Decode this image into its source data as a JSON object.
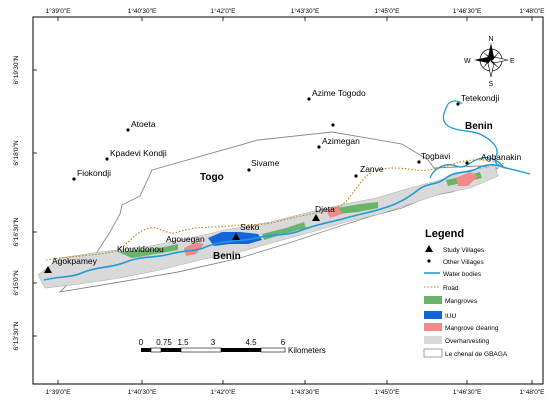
{
  "axes": {
    "top_ticks": [
      "1°39'0\"E",
      "1°40'30\"E",
      "1°42'0\"E",
      "1°43'30\"E",
      "1°45'0\"E",
      "1°46'30\"E",
      "1°48'0\"E"
    ],
    "bottom_ticks": [
      "1°39'0\"E",
      "1°40'30\"E",
      "1°42'0\"E",
      "1°43'30\"E",
      "1°45'0\"E",
      "1°46'30\"E",
      "1°48'0\"E"
    ],
    "left_ticks": [
      "6°19'30\"N",
      "6°18'0\"N",
      "6°16'30\"N",
      "6°15'0\"N",
      "6°13'30\"N"
    ]
  },
  "countries": {
    "togo": "Togo",
    "benin_south": "Benin",
    "benin_east": "Benin"
  },
  "places": {
    "azime_togodo": "Azime Togodo",
    "tetekondji": "Tetekondji",
    "atoeta": "Atoeta",
    "azimegan": "Azimegan",
    "kpadevi_kondji": "Kpadevi Kondji",
    "sivame": "Sivame",
    "togbavi": "Togbavi",
    "agbanakin": "Agbanakin",
    "fiokondji": "Fiokondji",
    "zanve": "Zanve",
    "djeta": "Djeta",
    "seko": "Seko",
    "agouegan": "Agouegan",
    "klouvidonou": "Klouvidonou",
    "agokpamey": "Agokpamey"
  },
  "legend": {
    "title": "Legend",
    "items": [
      {
        "label": "Study Villages",
        "symbol": "triangle",
        "color": "#000000"
      },
      {
        "label": "Other Villages",
        "symbol": "dot",
        "color": "#000000"
      },
      {
        "label": "Water bodies",
        "symbol": "line",
        "color": "#1f9bd7"
      },
      {
        "label": "Road",
        "symbol": "dotted-line",
        "color": "#b8860b"
      },
      {
        "label": "Mangroves",
        "symbol": "patch",
        "color": "#6ab36a"
      },
      {
        "label": "IUU",
        "symbol": "patch",
        "color": "#1565d8"
      },
      {
        "label": "Mangrove clearing",
        "symbol": "patch",
        "color": "#f08a8a"
      },
      {
        "label": "Overharvesting",
        "symbol": "patch",
        "color": "#d9d9d9"
      },
      {
        "label": "Le chenal de GBAGA",
        "symbol": "patch",
        "color": "#ffffff"
      }
    ]
  },
  "scale": {
    "ticks": [
      "0",
      "0.75",
      "1.5",
      "3",
      "4.5",
      "6"
    ],
    "unit": "Kilometers"
  },
  "compass": {
    "n": "N",
    "s": "S",
    "e": "E",
    "w": "W"
  },
  "colors": {
    "water": "#1f9bd7",
    "road": "#b8860b",
    "mangroves": "#6ab36a",
    "iuu": "#1565d8",
    "clearing": "#f08a8a",
    "overharvesting": "#d9d9d9",
    "boundary": "#8a8a8a"
  }
}
